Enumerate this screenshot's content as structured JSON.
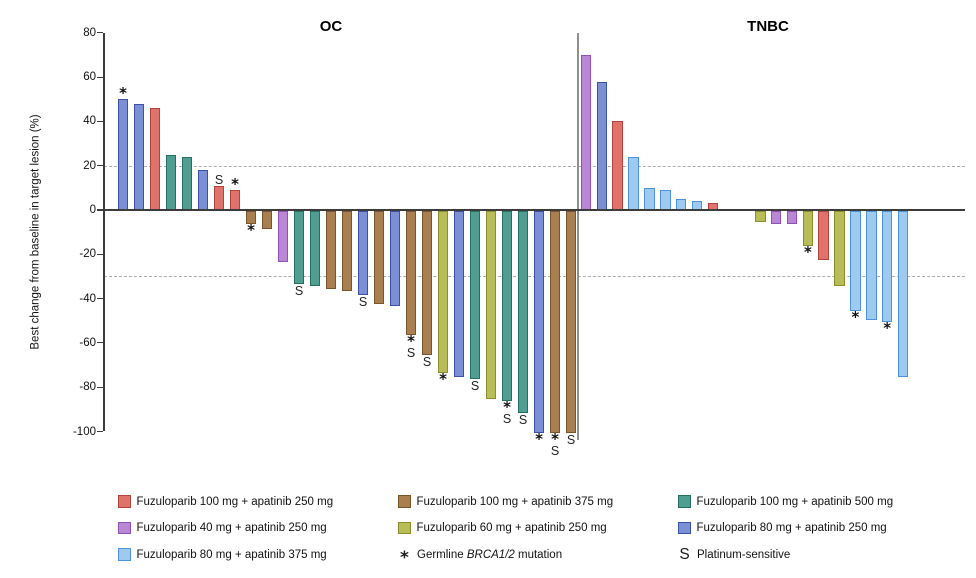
{
  "chart_data": {
    "type": "bar",
    "subtype": "waterfall",
    "title": "",
    "ylabel": "Best change from baseline in target lesion (%)",
    "ylim": [
      -100,
      80
    ],
    "yticks": [
      80,
      60,
      40,
      20,
      0,
      -20,
      -40,
      -60,
      -80,
      -100
    ],
    "reference_lines": [
      20,
      -30
    ],
    "grid": false,
    "legend_position": "bottom",
    "flag_meanings": {
      "*": "Germline BRCA1/2 mutation",
      "S": "Platinum-sensitive"
    },
    "palette": {
      "red": {
        "fill": "#E0726B",
        "border": "#B2443C",
        "label": "Fuzuloparib 100 mg + apatinib 250 mg"
      },
      "brown": {
        "fill": "#A97E51",
        "border": "#7A5527",
        "label": "Fuzuloparib 100 mg + apatinib 375 mg"
      },
      "teal": {
        "fill": "#4E9E92",
        "border": "#27705F",
        "label": "Fuzuloparib 100 mg + apatinib 500 mg"
      },
      "purple": {
        "fill": "#BC86D7",
        "border": "#9050B4",
        "label": "Fuzuloparib 40 mg + apatinib 250 mg"
      },
      "yellowgreen": {
        "fill": "#B9BD58",
        "border": "#8A8E2E",
        "label": "Fuzuloparib 60 mg + apatinib 250 mg"
      },
      "blue": {
        "fill": "#7B8FD4",
        "border": "#3B51A8",
        "label": "Fuzuloparib 80 mg + apatinib 250 mg"
      },
      "lightblue": {
        "fill": "#9FCAEF",
        "border": "#4D93DB",
        "label": "Fuzuloparib 80 mg + apatinib 375 mg"
      }
    },
    "groups": [
      {
        "label": "OC",
        "bars": [
          {
            "value": 50,
            "color": "blue",
            "flags": "*"
          },
          {
            "value": 48,
            "color": "blue",
            "flags": ""
          },
          {
            "value": 46,
            "color": "red",
            "flags": ""
          },
          {
            "value": 25,
            "color": "teal",
            "flags": ""
          },
          {
            "value": 24,
            "color": "teal",
            "flags": ""
          },
          {
            "value": 18,
            "color": "blue",
            "flags": ""
          },
          {
            "value": 11,
            "color": "red",
            "flags": "S"
          },
          {
            "value": 9,
            "color": "red",
            "flags": "*"
          },
          {
            "value": -6,
            "color": "brown",
            "flags": "*"
          },
          {
            "value": -8,
            "color": "brown",
            "flags": ""
          },
          {
            "value": -23,
            "color": "purple",
            "flags": ""
          },
          {
            "value": -33,
            "color": "teal",
            "flags": "S"
          },
          {
            "value": -34,
            "color": "teal",
            "flags": ""
          },
          {
            "value": -35,
            "color": "brown",
            "flags": ""
          },
          {
            "value": -36,
            "color": "brown",
            "flags": ""
          },
          {
            "value": -38,
            "color": "blue",
            "flags": "S"
          },
          {
            "value": -42,
            "color": "brown",
            "flags": ""
          },
          {
            "value": -43,
            "color": "blue",
            "flags": ""
          },
          {
            "value": -56,
            "color": "brown",
            "flags": "*S"
          },
          {
            "value": -65,
            "color": "brown",
            "flags": "S"
          },
          {
            "value": -73,
            "color": "yellowgreen",
            "flags": "*"
          },
          {
            "value": -75,
            "color": "blue",
            "flags": ""
          },
          {
            "value": -76,
            "color": "teal",
            "flags": "S"
          },
          {
            "value": -85,
            "color": "yellowgreen",
            "flags": ""
          },
          {
            "value": -86,
            "color": "teal",
            "flags": "*S"
          },
          {
            "value": -91,
            "color": "teal",
            "flags": "S"
          },
          {
            "value": -100,
            "color": "blue",
            "flags": "*"
          },
          {
            "value": -100,
            "color": "brown",
            "flags": "*S"
          },
          {
            "value": -100,
            "color": "brown",
            "flags": "S"
          }
        ]
      },
      {
        "label": "TNBC",
        "bars": [
          {
            "value": 70,
            "color": "purple",
            "flags": ""
          },
          {
            "value": 58,
            "color": "blue",
            "flags": ""
          },
          {
            "value": 40,
            "color": "red",
            "flags": ""
          },
          {
            "value": 24,
            "color": "lightblue",
            "flags": ""
          },
          {
            "value": 10,
            "color": "lightblue",
            "flags": ""
          },
          {
            "value": 9,
            "color": "lightblue",
            "flags": ""
          },
          {
            "value": 5,
            "color": "lightblue",
            "flags": ""
          },
          {
            "value": 4,
            "color": "lightblue",
            "flags": ""
          },
          {
            "value": 3,
            "color": "red",
            "flags": ""
          },
          {
            "value": 0,
            "color": null,
            "flags": ""
          },
          {
            "value": 0,
            "color": null,
            "flags": ""
          },
          {
            "value": -5,
            "color": "yellowgreen",
            "flags": ""
          },
          {
            "value": -6,
            "color": "purple",
            "flags": ""
          },
          {
            "value": -6,
            "color": "purple",
            "flags": ""
          },
          {
            "value": -16,
            "color": "yellowgreen",
            "flags": "*"
          },
          {
            "value": -22,
            "color": "red",
            "flags": ""
          },
          {
            "value": -34,
            "color": "yellowgreen",
            "flags": ""
          },
          {
            "value": -45,
            "color": "lightblue",
            "flags": "*"
          },
          {
            "value": -49,
            "color": "lightblue",
            "flags": ""
          },
          {
            "value": -50,
            "color": "lightblue",
            "flags": "*"
          },
          {
            "value": -75,
            "color": "lightblue",
            "flags": ""
          }
        ]
      }
    ]
  },
  "legend": {
    "columns": [
      {
        "items": [
          {
            "swatch": "red"
          },
          {
            "swatch": "purple"
          },
          {
            "swatch": "lightblue"
          }
        ]
      },
      {
        "items": [
          {
            "swatch": "brown"
          },
          {
            "swatch": "yellowgreen"
          },
          {
            "symbol": "*",
            "parts": [
              {
                "t": "Germline "
              },
              {
                "t": "BRCA1/2",
                "i": true
              },
              {
                "t": " mutation"
              }
            ]
          }
        ]
      },
      {
        "items": [
          {
            "swatch": "teal"
          },
          {
            "swatch": "blue"
          },
          {
            "symbol": "S",
            "parts": [
              {
                "t": "Platinum-sensitive"
              }
            ]
          }
        ]
      }
    ]
  }
}
